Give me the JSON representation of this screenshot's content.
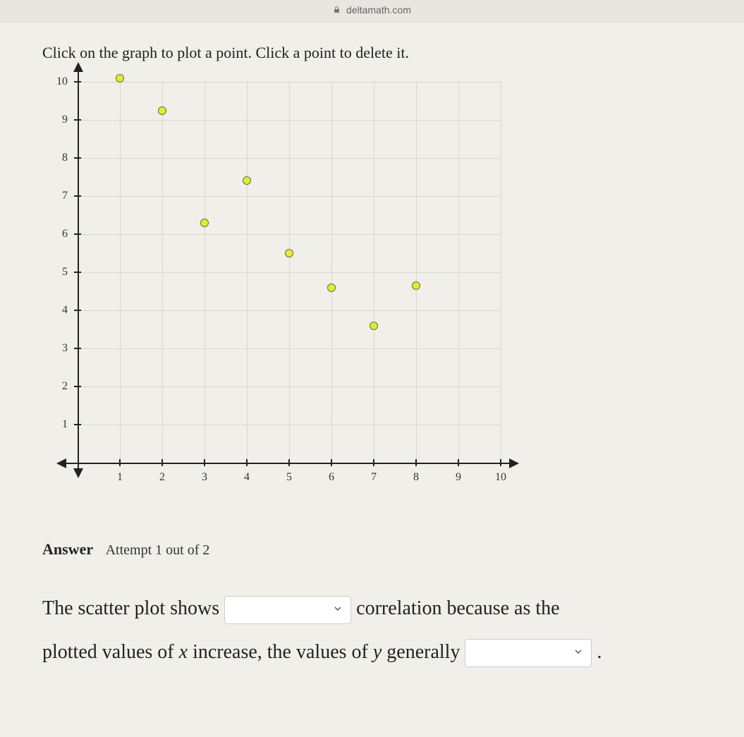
{
  "url": "deltamath.com",
  "instruction": "Click on the graph to plot a point. Click a point to delete it.",
  "chart": {
    "type": "scatter",
    "xlim": [
      0,
      10
    ],
    "ylim": [
      0,
      10
    ],
    "xticks": [
      1,
      2,
      3,
      4,
      5,
      6,
      7,
      8,
      9,
      10
    ],
    "yticks": [
      1,
      2,
      3,
      4,
      5,
      6,
      7,
      8,
      9,
      10
    ],
    "grid_color": "#d8d6cf",
    "axis_color": "#222222",
    "background_color": "#f0efea",
    "point_fill": "#e8e83a",
    "point_stroke": "#5a7a2a",
    "point_radius": 6,
    "points": [
      {
        "x": 1,
        "y": 10.1
      },
      {
        "x": 2,
        "y": 9.25
      },
      {
        "x": 3,
        "y": 6.3
      },
      {
        "x": 4,
        "y": 7.4
      },
      {
        "x": 5,
        "y": 5.5
      },
      {
        "x": 6,
        "y": 4.6
      },
      {
        "x": 7,
        "y": 3.6
      },
      {
        "x": 8,
        "y": 4.65
      }
    ]
  },
  "answer": {
    "label": "Answer",
    "attempt": "Attempt 1 out of 2",
    "sentence_part1": "The scatter plot shows",
    "sentence_part2": "correlation because as the",
    "sentence_part3": "plotted values of",
    "sentence_var1": "x",
    "sentence_part4": "increase, the values of",
    "sentence_var2": "y",
    "sentence_part5": "generally",
    "period": "."
  }
}
